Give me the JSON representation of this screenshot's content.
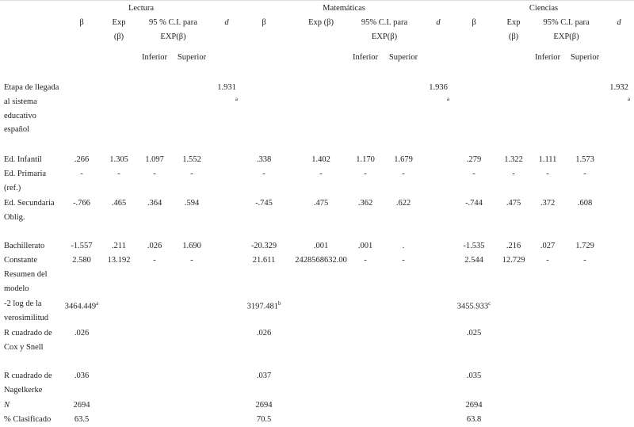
{
  "header": {
    "groups": [
      {
        "title": "Lectura",
        "beta": "β",
        "exp": "Exp (β)",
        "ci": "95 % C.I. para EXP(β)",
        "lower": "Inferior",
        "upper": "Superior",
        "d": "d"
      },
      {
        "title": "Matemáticas",
        "beta": "β",
        "exp": "Exp (β)",
        "ci": "95% C.I. para EXP(β)",
        "lower": "Inferior",
        "upper": "Superior",
        "d": "d"
      },
      {
        "title": "Ciencias",
        "beta": "β",
        "exp": "Exp (β)",
        "ci": "95% C.I. para EXP(β)",
        "lower": "Inferior",
        "upper": "Superior",
        "d": "d"
      }
    ]
  },
  "rows": [
    {
      "label": "Etapa de llegada al sistema educativo español",
      "cells": [
        null,
        null,
        null,
        null,
        {
          "value": "1.931",
          "note": "a"
        },
        null,
        null,
        null,
        null,
        {
          "value": "1.936",
          "note": "a"
        },
        null,
        null,
        null,
        null,
        {
          "value": "1.932",
          "note": "a"
        }
      ]
    },
    {
      "label": "Ed. Infantil",
      "cells": [
        ".266",
        "1.305",
        "1.097",
        "1.552",
        null,
        ".338",
        "1.402",
        "1.170",
        "1.679",
        null,
        ".279",
        "1.322",
        "1.111",
        "1.573",
        null
      ]
    },
    {
      "label": "Ed. Primaria (ref.)",
      "cells": [
        "-",
        "-",
        "-",
        "-",
        null,
        "-",
        "-",
        "-",
        "-",
        null,
        "-",
        "-",
        "-",
        "-",
        null
      ]
    },
    {
      "label": "Ed. Secundaria Oblig.",
      "cells": [
        "-.766",
        ".465",
        ".364",
        ".594",
        null,
        "-.745",
        ".475",
        ".362",
        ".622",
        null,
        "-.744",
        ".475",
        ".372",
        ".608",
        null
      ]
    },
    {
      "label": "Bachillerato",
      "cells": [
        "-1.557",
        ".211",
        ".026",
        "1.690",
        null,
        "-20.329",
        ".001",
        ".001",
        ".",
        null,
        "-1.535",
        ".216",
        ".027",
        "1.729",
        null
      ]
    },
    {
      "label": "Constante",
      "cells": [
        "2.580",
        "13.192",
        "-",
        "-",
        null,
        "21.611",
        "2428568632.00",
        "-",
        "-",
        null,
        "2.544",
        "12.729",
        "-",
        "-",
        null
      ]
    },
    {
      "label": "Resumen del modelo",
      "cells": [
        null,
        null,
        null,
        null,
        null,
        null,
        null,
        null,
        null,
        null,
        null,
        null,
        null,
        null,
        null
      ]
    },
    {
      "label": "-2 log de la verosimilitud",
      "cells": [
        {
          "value": "3464.449",
          "note": "a"
        },
        null,
        null,
        null,
        null,
        {
          "value": "3197.481",
          "note": "b"
        },
        null,
        null,
        null,
        null,
        {
          "value": "3455.933",
          "note": "c"
        },
        null,
        null,
        null,
        null
      ]
    },
    {
      "label": "R cuadrado de Cox y Snell",
      "cells": [
        ".026",
        null,
        null,
        null,
        null,
        ".026",
        null,
        null,
        null,
        null,
        ".025",
        null,
        null,
        null,
        null
      ]
    },
    {
      "label": "R cuadrado de Nagelkerke",
      "cells": [
        ".036",
        null,
        null,
        null,
        null,
        ".037",
        null,
        null,
        null,
        null,
        ".035",
        null,
        null,
        null,
        null
      ]
    },
    {
      "label": "N",
      "cells": [
        "2694",
        null,
        null,
        null,
        null,
        "2694",
        null,
        null,
        null,
        null,
        "2694",
        null,
        null,
        null,
        null
      ]
    },
    {
      "label": "% Clasificado",
      "cells": [
        "63.5",
        null,
        null,
        null,
        null,
        "70.5",
        null,
        null,
        null,
        null,
        "63.8",
        null,
        null,
        null,
        null
      ]
    }
  ]
}
